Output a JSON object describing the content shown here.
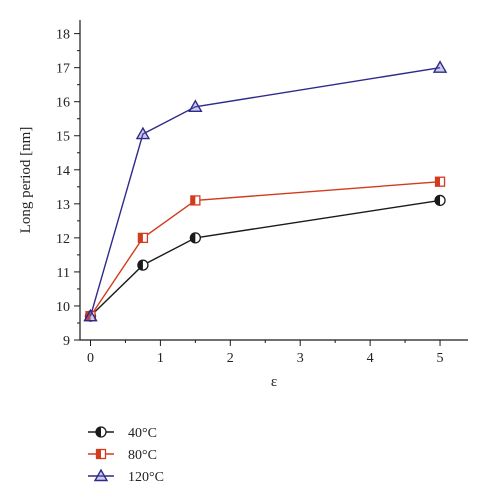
{
  "chart_data": {
    "type": "line",
    "title": "",
    "xlabel": "ε",
    "ylabel": "Long period [nm]",
    "xlim": [
      -0.15,
      5.4
    ],
    "ylim": [
      9,
      18.4
    ],
    "xticks": [
      0,
      1,
      2,
      3,
      4,
      5
    ],
    "xticks_minor": [
      0.5,
      1.5,
      2.5,
      3.5,
      4.5
    ],
    "yticks": [
      9,
      10,
      11,
      12,
      13,
      14,
      15,
      16,
      17,
      18
    ],
    "yticks_minor": [
      9.5,
      10.5,
      11.5,
      12.5,
      13.5,
      14.5,
      15.5,
      16.5,
      17.5
    ],
    "grid": false,
    "legend_position": "bottom-left, below plot",
    "series": [
      {
        "name": "40°C",
        "color": "#1a1a1a",
        "marker": "half-filled-circle",
        "x": [
          0,
          0.75,
          1.5,
          5
        ],
        "y": [
          9.7,
          11.2,
          12.0,
          13.1
        ]
      },
      {
        "name": "80°C",
        "color": "#d23c1e",
        "marker": "half-filled-square",
        "x": [
          0,
          0.75,
          1.5,
          5
        ],
        "y": [
          9.7,
          12.0,
          13.1,
          13.65
        ]
      },
      {
        "name": "120°C",
        "color": "#2e2a8a",
        "marker": "triangle",
        "x": [
          0,
          0.75,
          1.5,
          5
        ],
        "y": [
          9.7,
          15.05,
          15.85,
          17.0
        ]
      }
    ]
  }
}
